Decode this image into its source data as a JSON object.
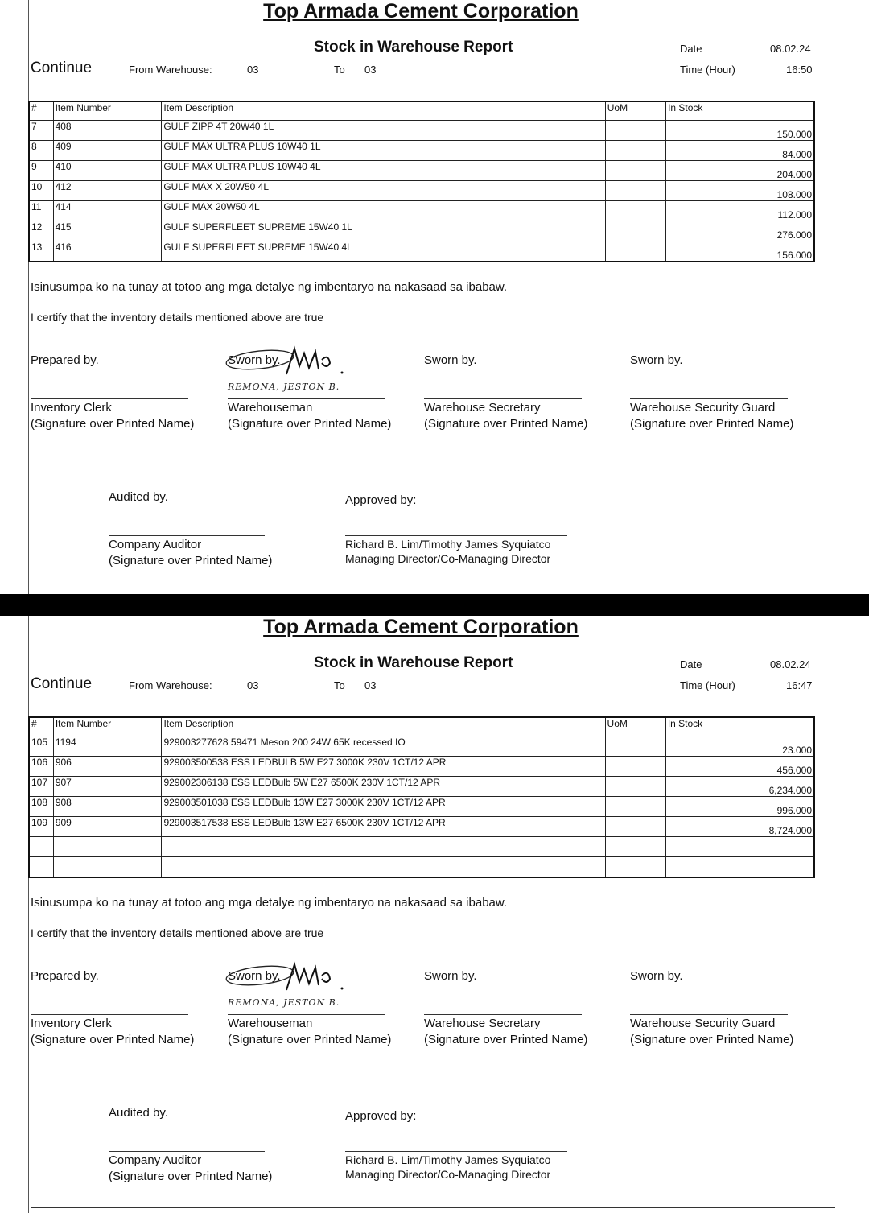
{
  "pages": [
    {
      "company": "Top Armada Cement Corporation",
      "report_title": "Stock in Warehouse Report",
      "continue_label": "Continue",
      "from_label": "From Warehouse:",
      "from_value": "03",
      "to_label": "To",
      "to_value": "03",
      "date_label": "Date",
      "date_value": "08.02.24",
      "time_label": "Time (Hour)",
      "time_value": "16:50",
      "columns": [
        "#",
        "Item Number",
        "Item Description",
        "UoM",
        "In Stock"
      ],
      "rows": [
        [
          "7",
          "408",
          "GULF ZIPP 4T 20W40 1L",
          "",
          "150.000"
        ],
        [
          "8",
          "409",
          "GULF MAX ULTRA PLUS 10W40 1L",
          "",
          "84.000"
        ],
        [
          "9",
          "410",
          "GULF MAX ULTRA PLUS 10W40 4L",
          "",
          "204.000"
        ],
        [
          "10",
          "412",
          "GULF MAX X 20W50 4L",
          "",
          "108.000"
        ],
        [
          "11",
          "414",
          "GULF MAX 20W50 4L",
          "",
          "112.000"
        ],
        [
          "12",
          "415",
          "GULF SUPERFLEET SUPREME 15W40 1L",
          "",
          "276.000"
        ],
        [
          "13",
          "416",
          "GULF SUPERFLEET SUPREME 15W40 4L",
          "",
          "156.000"
        ]
      ],
      "oath": "Isinusumpa ko na tunay at totoo ang mga detalye ng imbentaryo na nakasaad sa ibabaw.",
      "certify": "I certify that the inventory details mentioned above are true",
      "signatories": [
        {
          "head": "Prepared by.",
          "role": "Inventory Clerk",
          "note": "(Signature over Printed Name)"
        },
        {
          "head": "Sworn by.",
          "role": "Warehouseman",
          "note": "(Signature over Printed Name)",
          "handwritten": "REMONA, JESTON B."
        },
        {
          "head": "Sworn by.",
          "role": "Warehouse Secretary",
          "note": "(Signature over Printed Name)"
        },
        {
          "head": "Sworn by.",
          "role": "Warehouse Security Guard",
          "note": "(Signature over Printed Name)"
        }
      ],
      "audited_by": "Audited by.",
      "auditor_role": "Company Auditor",
      "auditor_note": "(Signature over Printed Name)",
      "approved_by": "Approved by:",
      "approver_names": "Richard B. Lim/Timothy James Syquiatco",
      "approver_titles": "Managing Director/Co-Managing Director"
    },
    {
      "company": "Top Armada Cement Corporation",
      "report_title": "Stock in Warehouse Report",
      "continue_label": "Continue",
      "from_label": "From Warehouse:",
      "from_value": "03",
      "to_label": "To",
      "to_value": "03",
      "date_label": "Date",
      "date_value": "08.02.24",
      "time_label": "Time (Hour)",
      "time_value": "16:47",
      "columns": [
        "#",
        "Item Number",
        "Item Description",
        "UoM",
        "In Stock"
      ],
      "rows": [
        [
          "105",
          "1194",
          "929003277628 59471 Meson 200 24W 65K recessed IO",
          "",
          "23.000"
        ],
        [
          "106",
          "906",
          "929003500538 ESS LEDBULB 5W E27 3000K 230V 1CT/12 APR",
          "",
          "456.000"
        ],
        [
          "107",
          "907",
          "929002306138 ESS LEDBulb 5W E27 6500K 230V 1CT/12 APR",
          "",
          "6,234.000"
        ],
        [
          "108",
          "908",
          "929003501038 ESS LEDBulb 13W E27 3000K 230V 1CT/12 APR",
          "",
          "996.000"
        ],
        [
          "109",
          "909",
          "929003517538 ESS LEDBulb 13W E27 6500K 230V 1CT/12 APR",
          "",
          "8,724.000"
        ],
        [
          "",
          "",
          "",
          "",
          ""
        ],
        [
          "",
          "",
          "",
          "",
          ""
        ]
      ],
      "oath": "Isinusumpa ko na tunay at totoo ang mga detalye ng imbentaryo na nakasaad sa ibabaw.",
      "certify": "I certify that the inventory details mentioned above are true",
      "signatories": [
        {
          "head": "Prepared by.",
          "role": "Inventory Clerk",
          "note": "(Signature over Printed Name)"
        },
        {
          "head": "Sworn by.",
          "role": "Warehouseman",
          "note": "(Signature over Printed Name)",
          "handwritten": "REMONA, JESTON B."
        },
        {
          "head": "Sworn by.",
          "role": "Warehouse Secretary",
          "note": "(Signature over Printed Name)"
        },
        {
          "head": "Sworn by.",
          "role": "Warehouse Security Guard",
          "note": "(Signature over Printed Name)"
        }
      ],
      "audited_by": "Audited by.",
      "auditor_role": "Company Auditor",
      "auditor_note": "(Signature over Printed Name)",
      "approved_by": "Approved by:",
      "approver_names": "Richard B. Lim/Timothy James Syquiatco",
      "approver_titles": "Managing Director/Co-Managing Director"
    }
  ]
}
